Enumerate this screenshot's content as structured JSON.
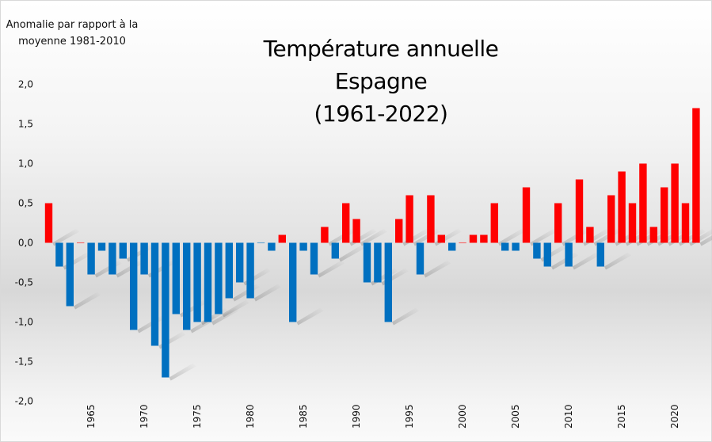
{
  "chart_data": {
    "type": "bar",
    "title": [
      "Température annuelle",
      "Espagne",
      "(1961-2022)"
    ],
    "ylabel": [
      "Anomalie par rapport à la",
      "moyenne 1981-2010"
    ],
    "xlabel": "",
    "ylim": [
      -2.0,
      2.0
    ],
    "yticks": [
      2.0,
      1.5,
      1.0,
      0.5,
      0.0,
      -0.5,
      -1.0,
      -1.5,
      -2.0
    ],
    "ytick_labels": [
      "2,0",
      "1,5",
      "1,0",
      "0,5",
      "0,0",
      "-0,5",
      "-1,0",
      "-1,5",
      "-2,0"
    ],
    "xtick_labels": [
      "1965",
      "1970",
      "1975",
      "1980",
      "1985",
      "1990",
      "1995",
      "2000",
      "2005",
      "2010",
      "2015",
      "2020"
    ],
    "grid": false,
    "legend": "none",
    "colors": {
      "positive": "#ff0000",
      "negative": "#0070c0"
    },
    "categories": [
      1961,
      1962,
      1963,
      1964,
      1965,
      1966,
      1967,
      1968,
      1969,
      1970,
      1971,
      1972,
      1973,
      1974,
      1975,
      1976,
      1977,
      1978,
      1979,
      1980,
      1981,
      1982,
      1983,
      1984,
      1985,
      1986,
      1987,
      1988,
      1989,
      1990,
      1991,
      1992,
      1993,
      1994,
      1995,
      1996,
      1997,
      1998,
      1999,
      2000,
      2001,
      2002,
      2003,
      2004,
      2005,
      2006,
      2007,
      2008,
      2009,
      2010,
      2011,
      2012,
      2013,
      2014,
      2015,
      2016,
      2017,
      2018,
      2019,
      2020,
      2021,
      2022
    ],
    "values": [
      0.5,
      -0.3,
      -0.8,
      0.01,
      -0.4,
      -0.1,
      -0.4,
      -0.2,
      -1.1,
      -0.4,
      -1.3,
      -1.7,
      -0.9,
      -1.1,
      -1.0,
      -1.0,
      -0.9,
      -0.7,
      -0.5,
      -0.7,
      -0.01,
      -0.1,
      0.1,
      -1.0,
      -0.1,
      -0.4,
      0.2,
      -0.2,
      0.5,
      0.3,
      -0.5,
      -0.5,
      -1.0,
      0.3,
      0.6,
      -0.4,
      0.6,
      0.1,
      -0.1,
      0.01,
      0.1,
      0.1,
      0.5,
      -0.1,
      -0.1,
      0.7,
      -0.2,
      -0.3,
      0.5,
      -0.3,
      0.8,
      0.2,
      -0.3,
      0.6,
      0.9,
      0.5,
      1.0,
      0.2,
      0.7,
      1.0,
      0.5,
      1.7
    ]
  }
}
